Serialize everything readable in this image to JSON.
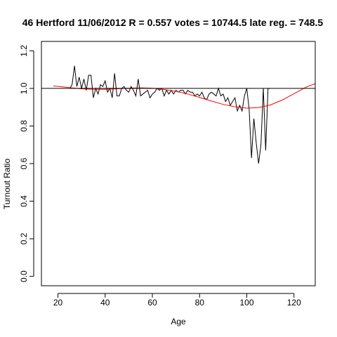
{
  "chart_data": {
    "type": "line",
    "title": "46 Hertford 11/06/2012 R = 0.557 votes = 10744.5 late reg. = 748.5",
    "xlabel": "Age",
    "ylabel": "Turnout Ratio",
    "xlim": [
      13,
      129
    ],
    "ylim": [
      -0.05,
      1.25
    ],
    "xticks": [
      20,
      40,
      60,
      80,
      100,
      120
    ],
    "yticks": [
      0.0,
      0.2,
      0.4,
      0.6,
      0.8,
      1.0,
      1.2
    ],
    "xtick_labels": [
      "20",
      "40",
      "60",
      "80",
      "100",
      "120"
    ],
    "ytick_labels": [
      "0.0",
      "0.2",
      "0.4",
      "0.6",
      "0.8",
      "1.0",
      "1.2"
    ],
    "grid": false,
    "reference_line": {
      "y": 1.0,
      "color": "#000000"
    },
    "series": [
      {
        "color": "#000000",
        "x": [
          25,
          26,
          27,
          28,
          29,
          30,
          31,
          32,
          33,
          34,
          35,
          36,
          37,
          38,
          39,
          40,
          41,
          42,
          43,
          44,
          45,
          46,
          47,
          48,
          49,
          50,
          51,
          52,
          53,
          54,
          55,
          56,
          57,
          58,
          59,
          60,
          61,
          62,
          63,
          64,
          65,
          66,
          67,
          68,
          69,
          70,
          71,
          72,
          73,
          74,
          75,
          76,
          77,
          78,
          79,
          80,
          81,
          82,
          83,
          84,
          85,
          86,
          87,
          88,
          89,
          90,
          91,
          92,
          93,
          94,
          95,
          96,
          97,
          98,
          99,
          100,
          101,
          102,
          103,
          104,
          105,
          106,
          107,
          108,
          109,
          110
        ],
        "y": [
          1.0,
          1.02,
          1.12,
          1.01,
          1.06,
          1.0,
          1.05,
          0.99,
          1.07,
          1.07,
          0.95,
          1.0,
          0.97,
          1.02,
          1.01,
          1.04,
          0.98,
          1.0,
          0.95,
          1.08,
          0.96,
          0.96,
          1.0,
          1.01,
          0.99,
          0.98,
          1.01,
          0.99,
          0.96,
          1.05,
          0.96,
          0.97,
          0.98,
          0.99,
          0.95,
          0.97,
          0.98,
          1.0,
          0.99,
          1.0,
          0.96,
          0.99,
          0.97,
          0.99,
          0.97,
          0.99,
          0.98,
          0.99,
          0.99,
          0.97,
          0.99,
          0.98,
          0.98,
          0.96,
          0.97,
          0.96,
          0.98,
          0.95,
          0.94,
          0.97,
          0.98,
          0.97,
          0.96,
          1.0,
          0.96,
          0.97,
          0.93,
          0.95,
          0.91,
          0.93,
          0.95,
          0.88,
          0.91,
          0.88,
          0.96,
          1.0,
          0.89,
          0.63,
          0.84,
          0.71,
          0.6,
          0.7,
          1.0,
          0.67,
          1.0,
          1.0
        ]
      },
      {
        "color": "#ff0000",
        "x": [
          18,
          20,
          25,
          30,
          35,
          40,
          45,
          50,
          55,
          60,
          65,
          70,
          75,
          80,
          85,
          90,
          95,
          100,
          105,
          110,
          115,
          120,
          125,
          129
        ],
        "y": [
          1.013,
          1.011,
          1.004,
          0.998,
          0.995,
          0.995,
          0.998,
          1.001,
          1.003,
          1.001,
          0.994,
          0.985,
          0.97,
          0.952,
          0.933,
          0.915,
          0.902,
          0.895,
          0.898,
          0.912,
          0.938,
          0.972,
          1.006,
          1.025
        ]
      }
    ]
  }
}
